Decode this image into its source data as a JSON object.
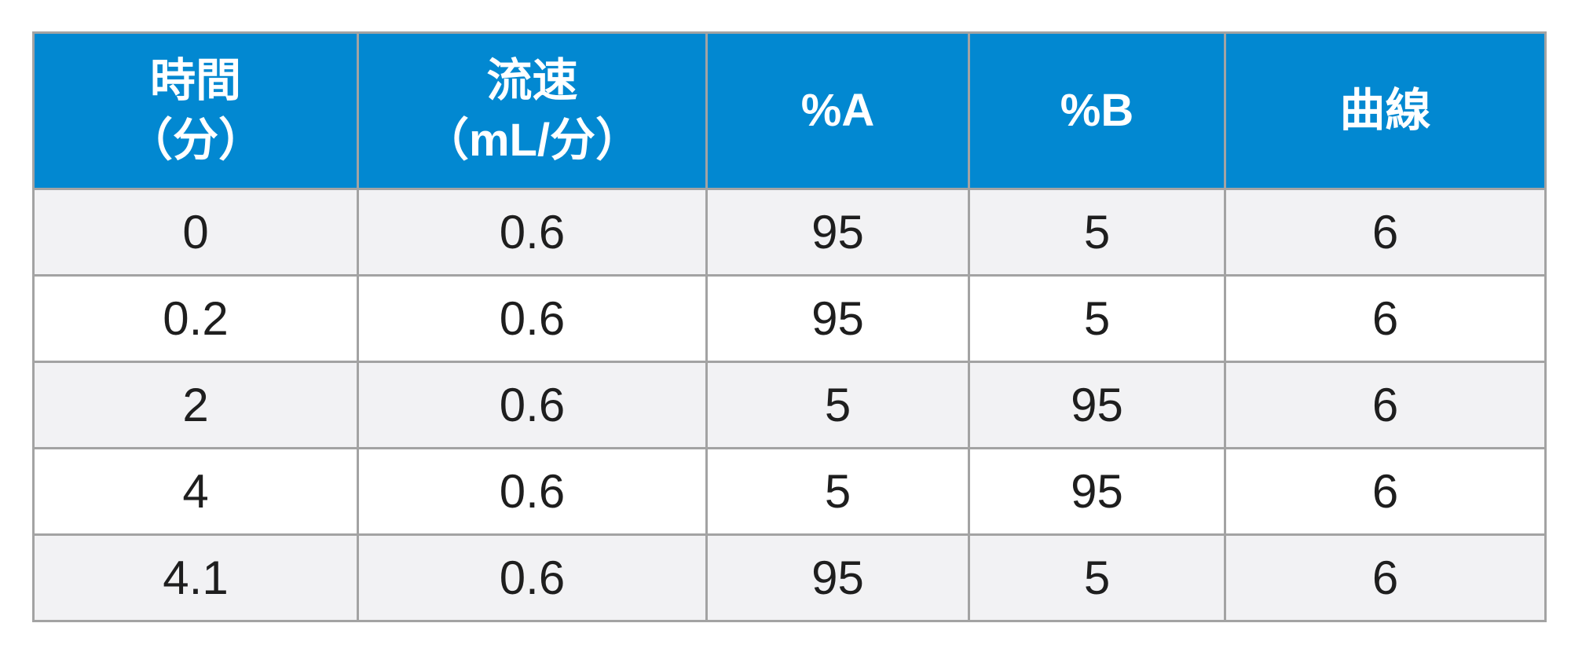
{
  "table": {
    "headers": [
      {
        "line1": "時間",
        "line2": "（分）"
      },
      {
        "line1": "流速",
        "line2": "（mL/分）"
      },
      {
        "line1": "%A",
        "line2": ""
      },
      {
        "line1": "%B",
        "line2": ""
      },
      {
        "line1": "曲線",
        "line2": ""
      }
    ],
    "rows": [
      [
        "0",
        "0.6",
        "95",
        "5",
        "6"
      ],
      [
        "0.2",
        "0.6",
        "95",
        "5",
        "6"
      ],
      [
        "2",
        "0.6",
        "5",
        "95",
        "6"
      ],
      [
        "4",
        "0.6",
        "5",
        "95",
        "6"
      ],
      [
        "4.1",
        "0.6",
        "95",
        "5",
        "6"
      ]
    ],
    "colors": {
      "header_bg": "#0288d1",
      "header_text": "#ffffff",
      "row_alt_bg": "#f2f2f4",
      "grid": "#a3a3a3"
    }
  }
}
